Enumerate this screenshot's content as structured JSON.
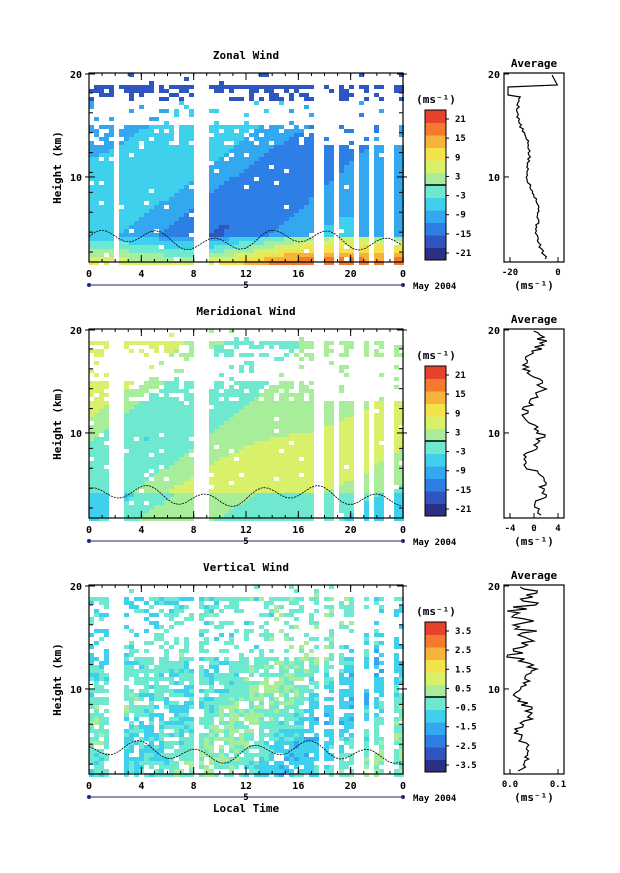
{
  "chart_data": [
    {
      "type": "heatmap",
      "title": "Zonal Wind",
      "ylabel": "Height (km)",
      "xticks": [
        "0",
        "4",
        "8",
        "12",
        "16",
        "20",
        "0"
      ],
      "yticks": [
        "20",
        "10"
      ],
      "ylim": [
        2,
        20
      ],
      "date_label": "5",
      "month_label": "May 2004",
      "colorbar": {
        "unit": "(ms⁻¹)",
        "ticks": [
          "21",
          "15",
          "9",
          "3",
          "-3",
          "-9",
          "-15",
          "-21"
        ]
      },
      "profile": {
        "title": "Average",
        "xticks": [
          "-20",
          "0"
        ],
        "yticks": [
          "20",
          "10"
        ],
        "unit": "(ms⁻¹)"
      }
    },
    {
      "type": "heatmap",
      "title": "Meridional Wind",
      "ylabel": "Height (km)",
      "xticks": [
        "0",
        "4",
        "8",
        "12",
        "16",
        "20",
        "0"
      ],
      "yticks": [
        "20",
        "10"
      ],
      "ylim": [
        2,
        20
      ],
      "date_label": "5",
      "month_label": "May 2004",
      "colorbar": {
        "unit": "(ms⁻¹)",
        "ticks": [
          "21",
          "15",
          "9",
          "3",
          "-3",
          "-9",
          "-15",
          "-21"
        ]
      },
      "profile": {
        "title": "Average",
        "xticks": [
          "-4",
          "0",
          "4"
        ],
        "yticks": [
          "20",
          "10"
        ],
        "unit": "(ms⁻¹)"
      }
    },
    {
      "type": "heatmap",
      "title": "Vertical Wind",
      "ylabel": "Height (km)",
      "xticks": [
        "0",
        "4",
        "8",
        "12",
        "16",
        "20",
        "0"
      ],
      "yticks": [
        "20",
        "10"
      ],
      "ylim": [
        2,
        20
      ],
      "date_label": "5",
      "month_label": "May 2004",
      "xlabel": "Local Time",
      "colorbar": {
        "unit": "(ms⁻¹)",
        "ticks": [
          "3.5",
          "2.5",
          "1.5",
          "0.5",
          "-0.5",
          "-1.5",
          "-2.5",
          "-3.5"
        ]
      },
      "profile": {
        "title": "Average",
        "xticks": [
          "0.0",
          "0.1"
        ],
        "yticks": [
          "20",
          "10"
        ],
        "unit": "(ms⁻¹)"
      }
    }
  ]
}
